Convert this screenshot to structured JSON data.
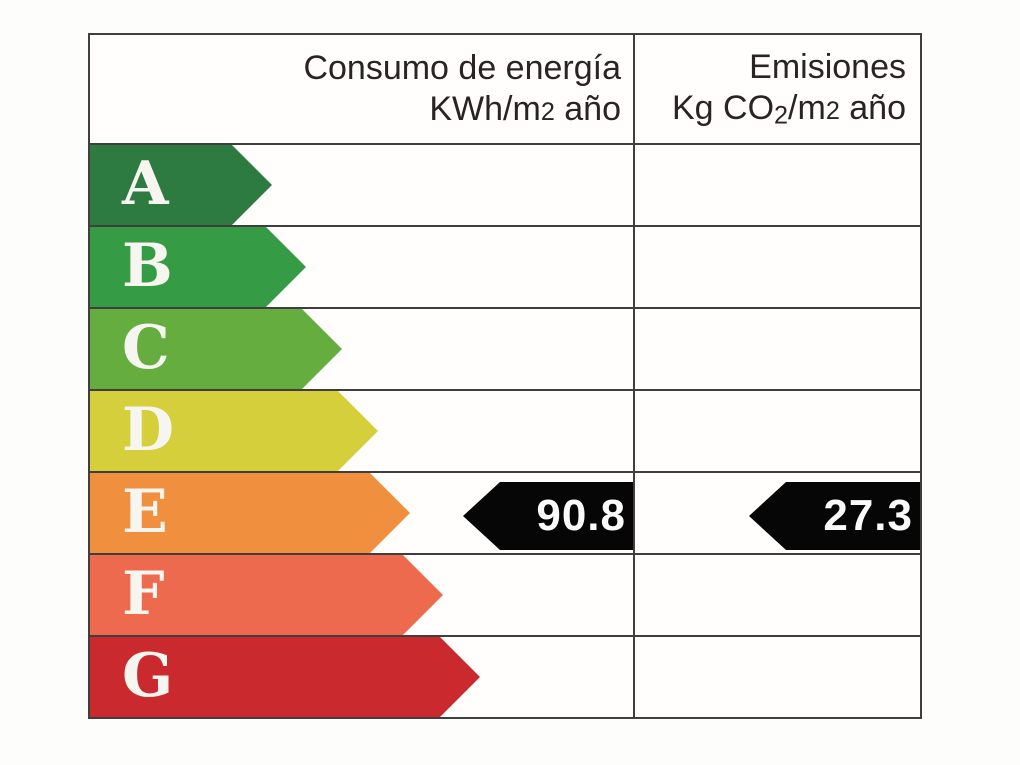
{
  "header": {
    "consumption": {
      "line1": "Consumo de energía",
      "line2_pre": "KWh/m",
      "line2_sup": "2",
      "line2_post": " año"
    },
    "emissions": {
      "line1": "Emisiones",
      "line2_pre": "Kg CO",
      "line2_sub": "2",
      "line2_mid": "/m",
      "line2_sup": "2",
      "line2_post": " año"
    }
  },
  "ratings": [
    {
      "letter": "A",
      "color": "#2e7b42",
      "arrow_width": 182
    },
    {
      "letter": "B",
      "color": "#359b44",
      "arrow_width": 216
    },
    {
      "letter": "C",
      "color": "#64ad3e",
      "arrow_width": 252
    },
    {
      "letter": "D",
      "color": "#d4cf3a",
      "arrow_width": 288
    },
    {
      "letter": "E",
      "color": "#f0903e",
      "arrow_width": 320
    },
    {
      "letter": "F",
      "color": "#ed6a4e",
      "arrow_width": 353
    },
    {
      "letter": "G",
      "color": "#ca2a2d",
      "arrow_width": 390
    }
  ],
  "values": {
    "rated_letter": "E",
    "consumption": "90.8",
    "emissions": "27.3",
    "arrow_color": "#060606",
    "text_color": "#fafafa"
  },
  "colors": {
    "grid": "#403e3f",
    "header_text": "#282425",
    "letter_text": "#f7f5ef",
    "background": "#fdfdfb"
  },
  "chart_data": {
    "type": "table",
    "title": "",
    "columns": [
      "Consumo de energía KWh/m2 año",
      "Emisiones Kg CO2/m2 año"
    ],
    "rows": [
      "A",
      "B",
      "C",
      "D",
      "E",
      "F",
      "G"
    ],
    "rated_row": "E",
    "values": {
      "consumo_kwh_m2_ano": 90.8,
      "emisiones_kg_co2_m2_ano": 27.3
    },
    "legend": false,
    "notes": "Energy-rating scale chart; colored arrows A–G of increasing length, black value arrows on row E"
  }
}
